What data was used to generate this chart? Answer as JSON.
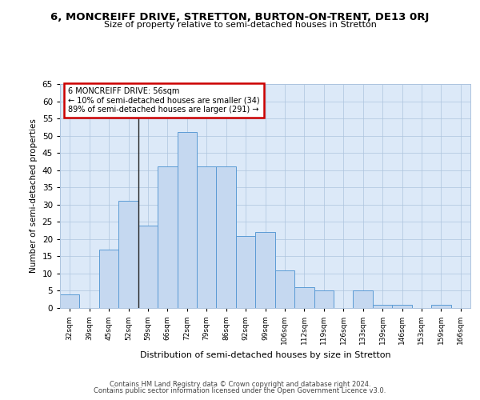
{
  "title": "6, MONCREIFF DRIVE, STRETTON, BURTON-ON-TRENT, DE13 0RJ",
  "subtitle": "Size of property relative to semi-detached houses in Stretton",
  "xlabel": "Distribution of semi-detached houses by size in Stretton",
  "ylabel": "Number of semi-detached properties",
  "categories": [
    "32sqm",
    "39sqm",
    "45sqm",
    "52sqm",
    "59sqm",
    "66sqm",
    "72sqm",
    "79sqm",
    "86sqm",
    "92sqm",
    "99sqm",
    "106sqm",
    "112sqm",
    "119sqm",
    "126sqm",
    "133sqm",
    "139sqm",
    "146sqm",
    "153sqm",
    "159sqm",
    "166sqm"
  ],
  "values": [
    4,
    0,
    17,
    31,
    24,
    41,
    51,
    41,
    41,
    21,
    22,
    11,
    6,
    5,
    0,
    5,
    1,
    1,
    0,
    1,
    0
  ],
  "bar_color": "#c5d8f0",
  "bar_edge_color": "#5b9bd5",
  "property_size": "56sqm",
  "annotation_text1": "6 MONCREIFF DRIVE: 56sqm",
  "annotation_text2": "← 10% of semi-detached houses are smaller (34)",
  "annotation_text3": "89% of semi-detached houses are larger (291) →",
  "annotation_box_color": "#ffffff",
  "annotation_border_color": "#cc0000",
  "ylim": [
    0,
    65
  ],
  "yticks": [
    0,
    5,
    10,
    15,
    20,
    25,
    30,
    35,
    40,
    45,
    50,
    55,
    60,
    65
  ],
  "plot_bg_color": "#dce9f8",
  "footer1": "Contains HM Land Registry data © Crown copyright and database right 2024.",
  "footer2": "Contains public sector information licensed under the Open Government Licence v3.0."
}
